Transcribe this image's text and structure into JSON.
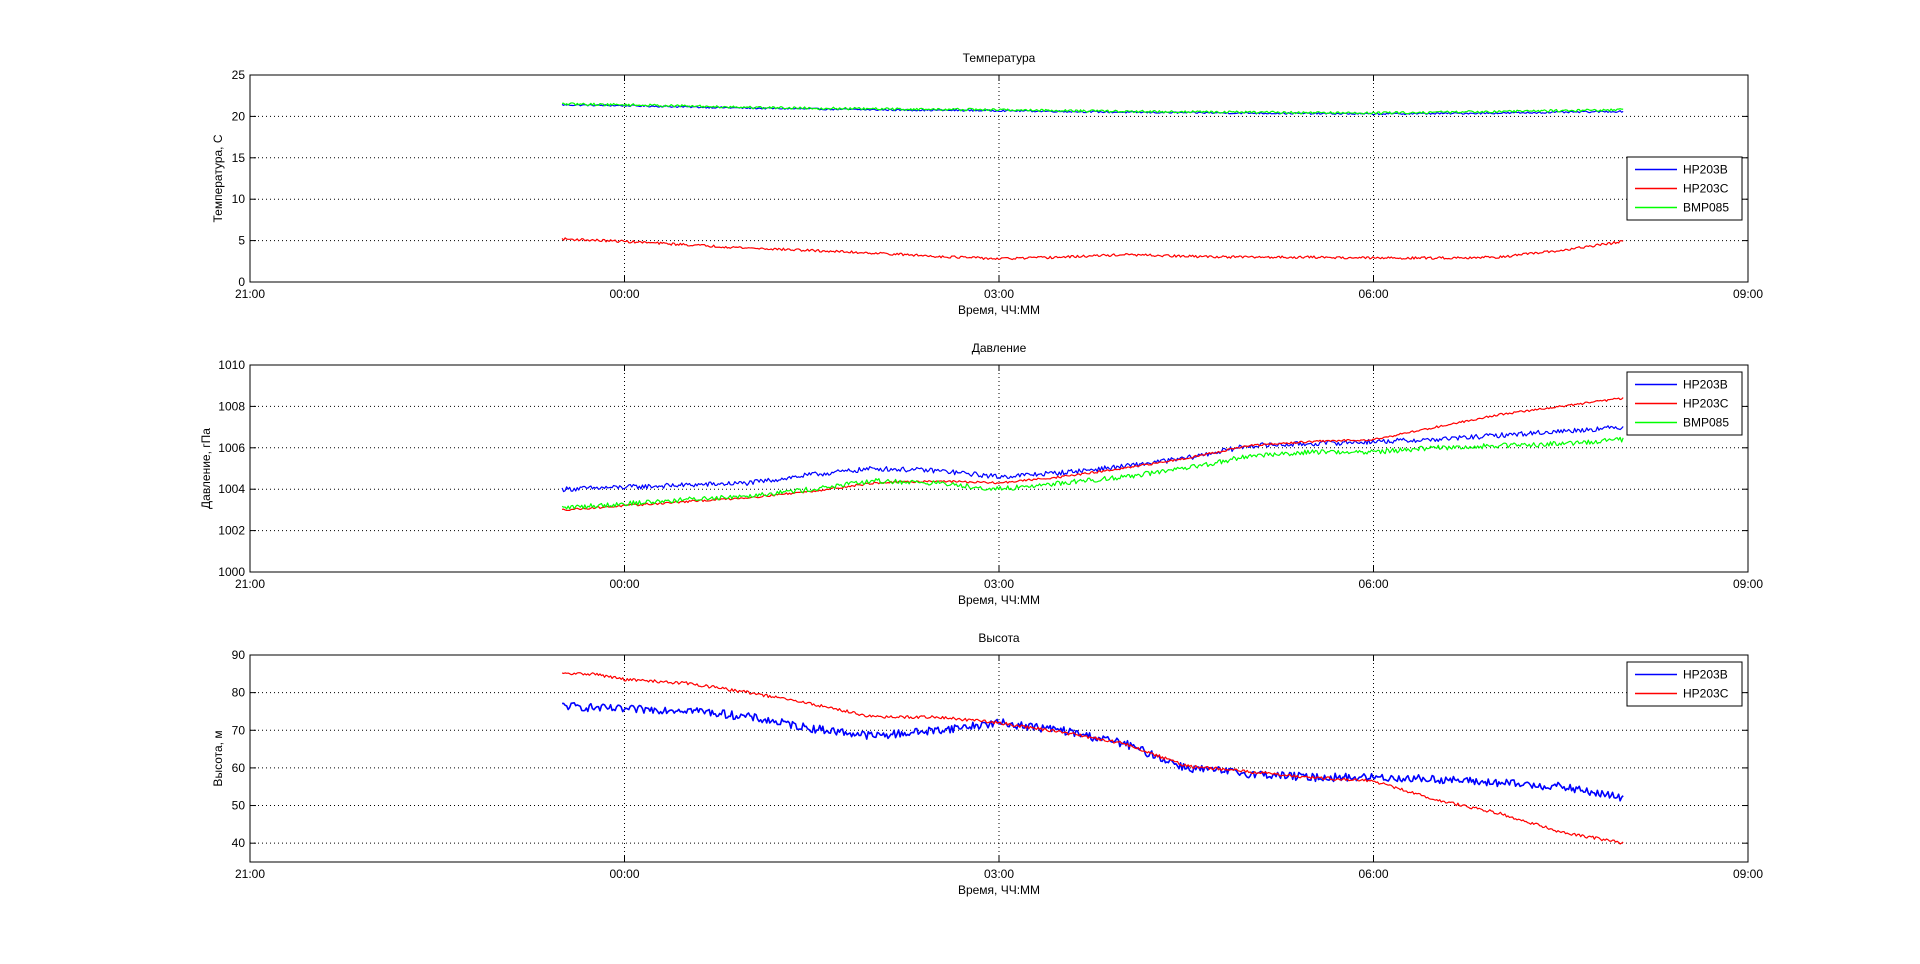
{
  "chart_data": [
    {
      "type": "line",
      "title": "Температура",
      "xlabel": "Время, ЧЧ:ММ",
      "ylabel": "Температура, С",
      "xlim": [
        21,
        33
      ],
      "ylim": [
        0,
        25
      ],
      "xticks": [
        21,
        24,
        27,
        30,
        33
      ],
      "xtick_labels": [
        "21:00",
        "00:00",
        "03:00",
        "06:00",
        "09:00"
      ],
      "yticks": [
        0,
        5,
        10,
        15,
        20,
        25
      ],
      "ytick_labels": [
        "0",
        "5",
        "10",
        "15",
        "20",
        "25"
      ],
      "grid": true,
      "legend_position": "right",
      "series": [
        {
          "name": "HP203B",
          "color": "#0000ff",
          "noise": 0.1,
          "x": [
            23.5,
            24,
            25,
            26,
            27,
            28,
            29,
            30,
            31,
            32
          ],
          "y": [
            21.4,
            21.3,
            21.0,
            20.8,
            20.7,
            20.5,
            20.4,
            20.3,
            20.4,
            20.6
          ]
        },
        {
          "name": "HP203C",
          "color": "#ff0000",
          "noise": 0.15,
          "x": [
            23.5,
            24,
            25,
            25.5,
            26,
            26.5,
            27,
            27.5,
            28,
            28.5,
            29,
            29.5,
            30,
            30.5,
            31,
            31.5,
            32
          ],
          "y": [
            5.2,
            4.9,
            4.1,
            3.8,
            3.5,
            3.1,
            2.8,
            3.0,
            3.3,
            3.1,
            3.0,
            3.0,
            2.9,
            2.9,
            3.0,
            3.8,
            4.9
          ]
        },
        {
          "name": "BMP085",
          "color": "#00ff00",
          "noise": 0.15,
          "x": [
            23.5,
            24,
            25,
            26,
            27,
            28,
            29,
            30,
            31,
            32
          ],
          "y": [
            21.5,
            21.4,
            21.1,
            20.9,
            20.8,
            20.6,
            20.5,
            20.4,
            20.6,
            20.8
          ]
        }
      ]
    },
    {
      "type": "line",
      "title": "Давление",
      "xlabel": "Время, ЧЧ:ММ",
      "ylabel": "Давление, гПа",
      "xlim": [
        21,
        33
      ],
      "ylim": [
        1000,
        1010
      ],
      "xticks": [
        21,
        24,
        27,
        30,
        33
      ],
      "xtick_labels": [
        "21:00",
        "00:00",
        "03:00",
        "06:00",
        "09:00"
      ],
      "yticks": [
        1000,
        1002,
        1004,
        1006,
        1008,
        1010
      ],
      "ytick_labels": [
        "1000",
        "1002",
        "1004",
        "1006",
        "1008",
        "1010"
      ],
      "grid": true,
      "legend_position": "top-right",
      "series": [
        {
          "name": "HP203B",
          "color": "#0000ff",
          "noise": 0.12,
          "x": [
            23.5,
            24,
            24.5,
            25,
            25.5,
            26,
            26.5,
            27,
            27.5,
            28,
            28.5,
            29,
            29.5,
            30,
            30.5,
            31,
            31.5,
            32
          ],
          "y": [
            1004.0,
            1004.1,
            1004.2,
            1004.3,
            1004.7,
            1005.0,
            1004.9,
            1004.6,
            1004.8,
            1005.1,
            1005.5,
            1006.1,
            1006.2,
            1006.3,
            1006.4,
            1006.6,
            1006.8,
            1007.0
          ]
        },
        {
          "name": "HP203C",
          "color": "#ff0000",
          "noise": 0.05,
          "x": [
            23.5,
            24,
            24.5,
            25,
            25.5,
            26,
            26.5,
            27,
            27.5,
            28,
            28.5,
            29,
            29.5,
            30,
            30.5,
            31,
            31.5,
            32
          ],
          "y": [
            1003.0,
            1003.2,
            1003.4,
            1003.6,
            1003.9,
            1004.3,
            1004.4,
            1004.3,
            1004.6,
            1005.0,
            1005.5,
            1006.1,
            1006.3,
            1006.4,
            1007.0,
            1007.6,
            1008.0,
            1008.4
          ]
        },
        {
          "name": "BMP085",
          "color": "#00ff00",
          "noise": 0.12,
          "x": [
            23.5,
            24,
            24.5,
            25,
            25.5,
            26,
            26.5,
            27,
            27.5,
            28,
            28.5,
            29,
            29.5,
            30,
            30.5,
            31,
            31.5,
            32
          ],
          "y": [
            1003.1,
            1003.3,
            1003.5,
            1003.7,
            1004.0,
            1004.4,
            1004.3,
            1004.0,
            1004.3,
            1004.6,
            1005.0,
            1005.6,
            1005.8,
            1005.8,
            1006.0,
            1006.1,
            1006.2,
            1006.4
          ]
        }
      ]
    },
    {
      "type": "line",
      "title": "Высота",
      "xlabel": "Время, ЧЧ:ММ",
      "ylabel": "Высота, м",
      "xlim": [
        21,
        33
      ],
      "ylim": [
        35,
        90
      ],
      "xticks": [
        21,
        24,
        27,
        30,
        33
      ],
      "xtick_labels": [
        "21:00",
        "00:00",
        "03:00",
        "06:00",
        "09:00"
      ],
      "yticks": [
        40,
        50,
        60,
        70,
        80,
        90
      ],
      "ytick_labels": [
        "40",
        "50",
        "60",
        "70",
        "80",
        "90"
      ],
      "grid": true,
      "legend_position": "top-right",
      "series": [
        {
          "name": "HP203B",
          "color": "#0000ff",
          "noise": 1.1,
          "x": [
            23.5,
            24,
            24.5,
            25,
            25.5,
            26,
            26.5,
            27,
            27.5,
            28,
            28.5,
            29,
            29.5,
            30,
            30.5,
            31,
            31.5,
            32
          ],
          "y": [
            76.5,
            75.5,
            75.5,
            73.5,
            70.5,
            68.5,
            70.0,
            72.0,
            70.0,
            66.5,
            60.0,
            58.5,
            57.5,
            57.5,
            57.0,
            56.0,
            55.0,
            52.0
          ]
        },
        {
          "name": "HP203C",
          "color": "#ff0000",
          "noise": 0.4,
          "x": [
            23.5,
            23.75,
            24,
            24.5,
            25,
            25.5,
            26,
            26.5,
            27,
            27.5,
            28,
            28.5,
            29,
            29.5,
            30,
            30.5,
            31,
            31.5,
            32
          ],
          "y": [
            85.0,
            85.0,
            83.5,
            82.5,
            80.0,
            77.0,
            73.5,
            73.5,
            72.0,
            69.5,
            66.5,
            60.5,
            59.0,
            57.5,
            56.5,
            51.5,
            48.0,
            43.0,
            40.0
          ]
        }
      ]
    }
  ]
}
